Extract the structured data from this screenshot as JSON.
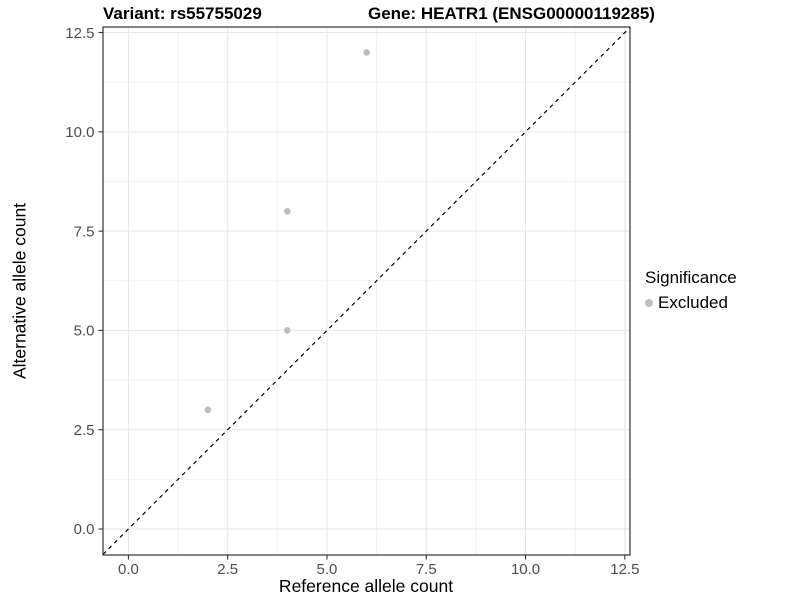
{
  "figure": {
    "title_left": "Variant: rs55755029",
    "title_right": "Gene: HEATR1 (ENSG00000119285)"
  },
  "chart_data": {
    "type": "scatter",
    "title": "Variant: rs55755029   |   Gene: HEATR1 (ENSG00000119285)",
    "xlabel": "Reference allele count",
    "ylabel": "Alternative allele count",
    "xlim": [
      -0.64,
      12.63
    ],
    "ylim": [
      -0.655,
      12.64
    ],
    "x_ticks": [
      0,
      2.5,
      5,
      7.5,
      10,
      12.5
    ],
    "x_tick_labels": [
      "0.0",
      "2.5",
      "5.0",
      "7.5",
      "10.0",
      "12.5"
    ],
    "y_ticks": [
      0,
      2.5,
      5,
      7.5,
      10,
      12.5
    ],
    "y_tick_labels": [
      "0.0",
      "2.5",
      "5.0",
      "7.5",
      "10.0",
      "12.5"
    ],
    "grid": "major+minor",
    "series": [
      {
        "name": "Excluded",
        "color": "#bdbdbd",
        "points": [
          [
            2,
            3
          ],
          [
            4,
            5
          ],
          [
            4,
            8
          ],
          [
            6,
            12
          ]
        ]
      }
    ],
    "reference_line": {
      "type": "identity",
      "style": "dashed",
      "color": "#000000"
    },
    "legend": {
      "position": "right",
      "title": "Significance",
      "items": [
        {
          "label": "Excluded",
          "color": "#bdbdbd"
        }
      ]
    },
    "style": {
      "point_radius": 3.3,
      "grid_major": "#e6e6e6",
      "grid_minor": "#f2f2f2",
      "panel_border": "#333333",
      "tick_color": "#333333",
      "tick_label_color": "#4d4d4d"
    }
  }
}
